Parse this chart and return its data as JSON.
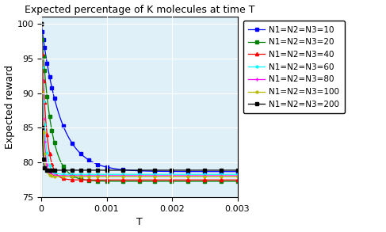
{
  "title": "Expected percentage of K molecules at time T",
  "xlabel": "T",
  "ylabel": "Expected reward",
  "xlim": [
    0,
    0.003
  ],
  "ylim": [
    75,
    101
  ],
  "yticks": [
    75,
    80,
    85,
    90,
    95,
    100
  ],
  "xticks": [
    0,
    0.001,
    0.002,
    0.003
  ],
  "series": [
    {
      "label": "N1=N2=N3=10",
      "color": "blue",
      "marker": "s",
      "markersize": 3,
      "N": 10,
      "asymptote": 78.7,
      "rate": 3500
    },
    {
      "label": "N1=N2=N3=20",
      "color": "green",
      "marker": "s",
      "markersize": 3,
      "N": 20,
      "asymptote": 77.3,
      "rate": 7000
    },
    {
      "label": "N1=N2=N3=40",
      "color": "red",
      "marker": "^",
      "markersize": 3,
      "N": 40,
      "asymptote": 77.5,
      "rate": 14000
    },
    {
      "label": "N1=N2=N3=60",
      "color": "cyan",
      "marker": "o",
      "markersize": 2,
      "N": 60,
      "asymptote": 78.3,
      "rate": 22000
    },
    {
      "label": "N1=N2=N3=80",
      "color": "magenta",
      "marker": "+",
      "markersize": 3,
      "N": 80,
      "asymptote": 78.1,
      "rate": 30000
    },
    {
      "label": "N1=N2=N3=100",
      "color": "#b8b800",
      "marker": "o",
      "markersize": 2,
      "N": 100,
      "asymptote": 78.0,
      "rate": 38000
    },
    {
      "label": "N1=N2=N3=200",
      "color": "black",
      "marker": "s",
      "markersize": 3,
      "N": 200,
      "asymptote": 78.9,
      "rate": 80000
    }
  ],
  "background_color": "#dff0f8",
  "grid_color": "white",
  "figsize": [
    4.87,
    2.93
  ],
  "dpi": 100
}
